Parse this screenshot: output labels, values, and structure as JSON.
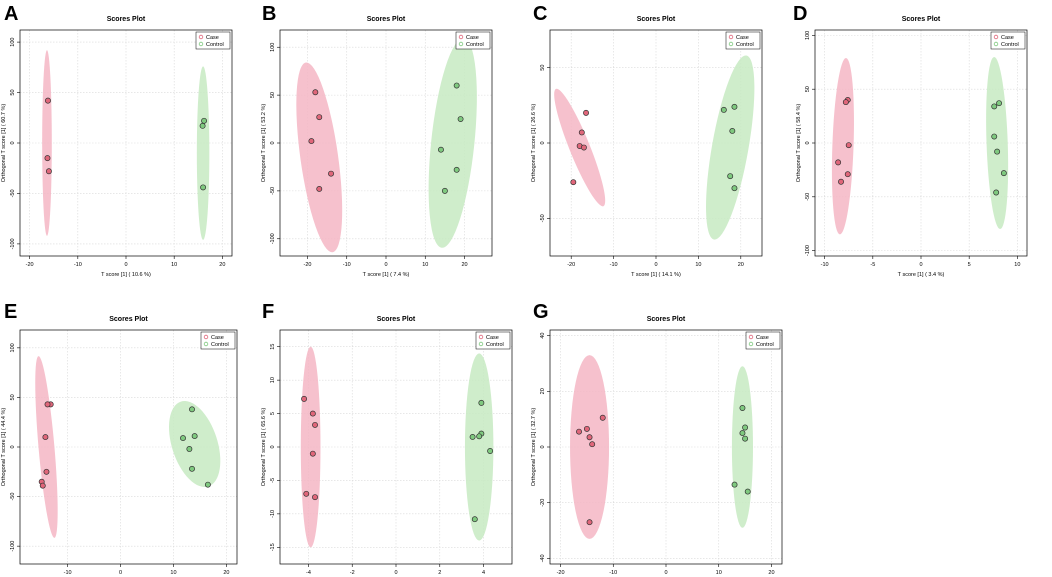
{
  "figure": {
    "colors": {
      "case_point": "#e0667a",
      "case_ellipse": "#f4b6c4",
      "control_point": "#7fc97f",
      "control_ellipse": "#c7eac2",
      "grid": "#d9d9d9",
      "frame": "#000000"
    }
  },
  "chart_data": [
    {
      "panel": "A",
      "type": "scatter",
      "title": "Scores Plot",
      "xlabel": "T score [1] ( 10.6 %)",
      "ylabel": "Orthogonal T score [1] ( 60.7 %)",
      "xlim": [
        -22,
        22
      ],
      "ylim": [
        -112,
        112
      ],
      "xticks": [
        -20,
        -10,
        0,
        10,
        20
      ],
      "yticks": [
        -100,
        -50,
        0,
        50,
        100
      ],
      "legend": [
        "Case",
        "Control"
      ],
      "series": [
        {
          "name": "Case",
          "points": [
            [
              -16.2,
              42
            ],
            [
              -16.3,
              -15
            ],
            [
              -16.0,
              -28
            ]
          ],
          "ellipse": {
            "cx": -16.4,
            "cy": 0,
            "rx": 1.0,
            "ry": 92,
            "angle": 0
          }
        },
        {
          "name": "Control",
          "points": [
            [
              16.2,
              22
            ],
            [
              15.9,
              17
            ],
            [
              16.0,
              -44
            ]
          ],
          "ellipse": {
            "cx": 16.0,
            "cy": -10,
            "rx": 1.3,
            "ry": 86,
            "angle": 0
          }
        }
      ]
    },
    {
      "panel": "B",
      "type": "scatter",
      "title": "Scores Plot",
      "xlabel": "T score [1] ( 7.4 %)",
      "ylabel": "Orthogonal T score [1] ( 53.2 %)",
      "xlim": [
        -27,
        27
      ],
      "ylim": [
        -118,
        118
      ],
      "xticks": [
        -20,
        -10,
        0,
        10,
        20
      ],
      "yticks": [
        -100,
        -50,
        0,
        50,
        100
      ],
      "legend": [
        "Case",
        "Control"
      ],
      "series": [
        {
          "name": "Case",
          "points": [
            [
              -18,
              53
            ],
            [
              -17,
              27
            ],
            [
              -19,
              2
            ],
            [
              -14,
              -32
            ],
            [
              -17,
              -48
            ]
          ],
          "ellipse": {
            "cx": -17,
            "cy": -15,
            "rx": 4.8,
            "ry": 100,
            "angle": -8
          }
        },
        {
          "name": "Control",
          "points": [
            [
              18,
              60
            ],
            [
              19,
              25
            ],
            [
              14,
              -7
            ],
            [
              18,
              -28
            ],
            [
              15,
              -50
            ]
          ],
          "ellipse": {
            "cx": 17,
            "cy": 0,
            "rx": 5.5,
            "ry": 110,
            "angle": 6
          }
        }
      ]
    },
    {
      "panel": "C",
      "type": "scatter",
      "title": "Scores Plot",
      "xlabel": "T score [1] ( 14.1 %)",
      "ylabel": "Orthogonal T score [1] ( 26.6 %)",
      "xlim": [
        -25,
        25
      ],
      "ylim": [
        -75,
        75
      ],
      "xticks": [
        -20,
        -10,
        0,
        10,
        20
      ],
      "yticks": [
        -50,
        0,
        50
      ],
      "legend": [
        "Case",
        "Control"
      ],
      "series": [
        {
          "name": "Case",
          "points": [
            [
              -16.5,
              20
            ],
            [
              -17.5,
              7
            ],
            [
              -18,
              -2
            ],
            [
              -17,
              -3
            ],
            [
              -19.5,
              -26
            ]
          ],
          "ellipse": {
            "cx": -18,
            "cy": -3,
            "rx": 2.4,
            "ry": 42,
            "angle": -22
          }
        },
        {
          "name": "Control",
          "points": [
            [
              18.5,
              24
            ],
            [
              16,
              22
            ],
            [
              18,
              8
            ],
            [
              17.5,
              -22
            ],
            [
              18.5,
              -30
            ]
          ],
          "ellipse": {
            "cx": 17.5,
            "cy": -3,
            "rx": 4.3,
            "ry": 62,
            "angle": 10
          }
        }
      ]
    },
    {
      "panel": "D",
      "type": "scatter",
      "title": "Scores Plot",
      "xlabel": "T score [1] ( 3.4 %)",
      "ylabel": "Orthogonal T score [1] ( 58.4 %)",
      "xlim": [
        -11,
        11
      ],
      "ylim": [
        -105,
        105
      ],
      "xticks": [
        -10,
        -5,
        0,
        5,
        10
      ],
      "yticks": [
        -100,
        -50,
        0,
        50,
        100
      ],
      "legend": [
        "Case",
        "Control"
      ],
      "series": [
        {
          "name": "Case",
          "points": [
            [
              -7.6,
              40
            ],
            [
              -7.8,
              38
            ],
            [
              -7.5,
              -2
            ],
            [
              -8.6,
              -18
            ],
            [
              -7.6,
              -29
            ],
            [
              -8.3,
              -36
            ]
          ],
          "ellipse": {
            "cx": -8.1,
            "cy": -3,
            "rx": 1.1,
            "ry": 82,
            "angle": 2
          }
        },
        {
          "name": "Control",
          "points": [
            [
              8.1,
              37
            ],
            [
              7.6,
              34
            ],
            [
              7.6,
              6
            ],
            [
              7.9,
              -8
            ],
            [
              8.6,
              -28
            ],
            [
              7.8,
              -46
            ]
          ],
          "ellipse": {
            "cx": 7.9,
            "cy": 0,
            "rx": 1.1,
            "ry": 80,
            "angle": -2
          }
        }
      ]
    },
    {
      "panel": "E",
      "type": "scatter",
      "title": "Scores Plot",
      "xlabel": "T score [1] ( 7 %)",
      "ylabel": "Orthogonal T score [1] ( 44.4 %)",
      "xlim": [
        -19,
        22
      ],
      "ylim": [
        -118,
        118
      ],
      "xticks": [
        -10,
        0,
        10,
        20
      ],
      "yticks": [
        -100,
        -50,
        0,
        50,
        100
      ],
      "legend": [
        "Case",
        "Control"
      ],
      "series": [
        {
          "name": "Case",
          "points": [
            [
              -13.2,
              43
            ],
            [
              -13.8,
              43
            ],
            [
              -14.2,
              10
            ],
            [
              -14.0,
              -25
            ],
            [
              -14.9,
              -35
            ],
            [
              -14.7,
              -39
            ]
          ],
          "ellipse": {
            "cx": -14,
            "cy": 0,
            "rx": 1.5,
            "ry": 92,
            "angle": -5
          }
        },
        {
          "name": "Control",
          "points": [
            [
              13.5,
              38
            ],
            [
              11.8,
              9
            ],
            [
              14,
              11
            ],
            [
              13,
              -2
            ],
            [
              13.5,
              -22
            ],
            [
              16.5,
              -38
            ]
          ],
          "ellipse": {
            "cx": 14,
            "cy": 3,
            "rx": 4.3,
            "ry": 45,
            "angle": -18
          }
        }
      ]
    },
    {
      "panel": "F",
      "type": "scatter",
      "title": "Scores Plot",
      "xlabel": "T score [1] ( 9 %)",
      "ylabel": "Orthogonal T score [1] ( 65.6 %)",
      "xlim": [
        -5.3,
        5.3
      ],
      "ylim": [
        -17.5,
        17.5
      ],
      "xticks": [
        -4,
        -2,
        0,
        2,
        4
      ],
      "yticks": [
        -15,
        -10,
        -5,
        0,
        5,
        10,
        15
      ],
      "legend": [
        "Case",
        "Control"
      ],
      "series": [
        {
          "name": "Case",
          "points": [
            [
              -4.2,
              7.2
            ],
            [
              -3.8,
              5.0
            ],
            [
              -3.7,
              3.3
            ],
            [
              -3.8,
              -1.0
            ],
            [
              -4.1,
              -7.0
            ],
            [
              -3.7,
              -7.5
            ]
          ],
          "ellipse": {
            "cx": -3.9,
            "cy": 0,
            "rx": 0.45,
            "ry": 15,
            "angle": 0
          }
        },
        {
          "name": "Control",
          "points": [
            [
              3.9,
              6.6
            ],
            [
              3.9,
              2.0
            ],
            [
              3.8,
              1.6
            ],
            [
              3.5,
              1.5
            ],
            [
              4.3,
              -0.6
            ],
            [
              3.6,
              -10.8
            ]
          ],
          "ellipse": {
            "cx": 3.8,
            "cy": 0,
            "rx": 0.65,
            "ry": 14,
            "angle": 0
          }
        }
      ]
    },
    {
      "panel": "G",
      "type": "scatter",
      "title": "Scores Plot",
      "xlabel": "T score [1] ( 17.7 %)",
      "ylabel": "Orthogonal T score [1] ( 32.7 %)",
      "xlim": [
        -22,
        22
      ],
      "ylim": [
        -42,
        42
      ],
      "xticks": [
        -20,
        -10,
        0,
        10,
        20
      ],
      "yticks": [
        -40,
        -20,
        0,
        20,
        40
      ],
      "legend": [
        "Case",
        "Control"
      ],
      "series": [
        {
          "name": "Case",
          "points": [
            [
              -12,
              10.5
            ],
            [
              -15,
              6.5
            ],
            [
              -16.5,
              5.5
            ],
            [
              -14.5,
              3.5
            ],
            [
              -14,
              1.0
            ],
            [
              -14.5,
              -27
            ]
          ],
          "ellipse": {
            "cx": -14.5,
            "cy": 0,
            "rx": 3.7,
            "ry": 33,
            "angle": 0
          }
        },
        {
          "name": "Control",
          "points": [
            [
              14.5,
              14
            ],
            [
              15,
              7
            ],
            [
              14.5,
              5
            ],
            [
              15,
              3
            ],
            [
              13,
              -13.5
            ],
            [
              15.5,
              -16
            ]
          ],
          "ellipse": {
            "cx": 14.5,
            "cy": 0,
            "rx": 2.0,
            "ry": 29,
            "angle": 0
          }
        }
      ]
    }
  ]
}
